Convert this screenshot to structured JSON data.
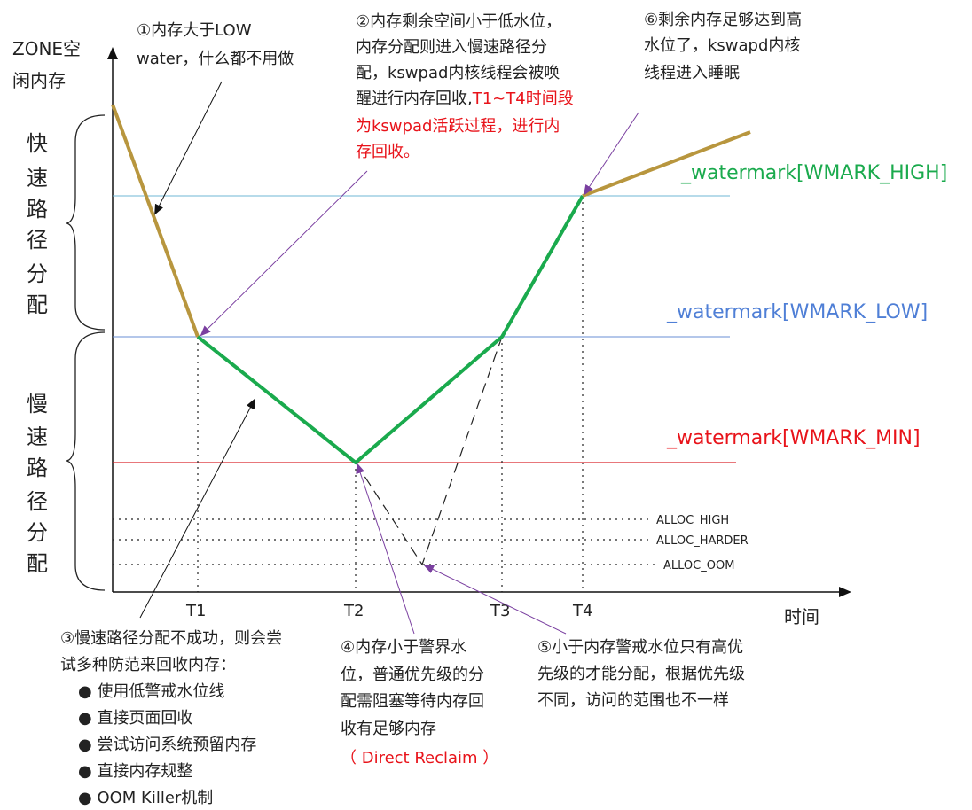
{
  "colors": {
    "fast_path": "#b8963e",
    "slow_path": "#1aaa4d",
    "high_line": "#6fb7d6",
    "low_line": "#6a8fd4",
    "min_line": "#d9262c",
    "high_label": "#1aaa4d",
    "low_label": "#4f7fd6",
    "min_label": "#e8131a",
    "arrow_purple": "#7a3fa0",
    "red_text": "#e8131a",
    "text": "#222222"
  },
  "axes": {
    "y_label_line1": "ZONE空",
    "y_label_line2": "闲内存",
    "x_label": "时间",
    "ticks": [
      "T1",
      "T2",
      "T3",
      "T4"
    ]
  },
  "watermarks": {
    "high": "_watermark[WMARK_HIGH]",
    "low": "_watermark[WMARK_LOW]",
    "min": "_watermark[WMARK_MIN]"
  },
  "alloc_levels": {
    "high": "ALLOC_HIGH",
    "harder": "ALLOC_HARDER",
    "oom": "ALLOC_OOM"
  },
  "regions": {
    "fast": [
      "快",
      "速",
      "路",
      "径",
      "分",
      "配"
    ],
    "slow": [
      "慢",
      "速",
      "路",
      "径",
      "分",
      "配"
    ]
  },
  "notes": {
    "n1": [
      "①内存大于LOW",
      "water，什么都不用做"
    ],
    "n2": [
      "②内存剩余空间小于低水位，",
      "内存分配则进入慢速路径分",
      "配，kswpad内核线程会被唤",
      "醒进行内存回收,"
    ],
    "n2_red_inline": "T1~T4时间段",
    "n2_red": [
      "为kswpad活跃过程，进行内",
      "存回收。"
    ],
    "n6": [
      "⑥剩余内存足够达到高",
      "水位了，kswapd内核",
      "线程进入睡眠"
    ],
    "n3": [
      "③慢速路径分配不成功，则会尝",
      "试多种防范来回收内存："
    ],
    "n3_items": [
      "使用低警戒水位线",
      "直接页面回收",
      "尝试访问系统预留内存",
      "直接内存规整",
      "OOM Killer机制"
    ],
    "n4": [
      "④内存小于警界水",
      "位，普通优先级的分",
      "配需阻塞等待内存回",
      "收有足够内存"
    ],
    "n4_red": "（ Direct Reclaim ）",
    "n5": [
      "⑤小于内存警戒水位只有高优",
      "先级的才能分配，根据优先级",
      "不同，访问的范围也不一样"
    ]
  }
}
